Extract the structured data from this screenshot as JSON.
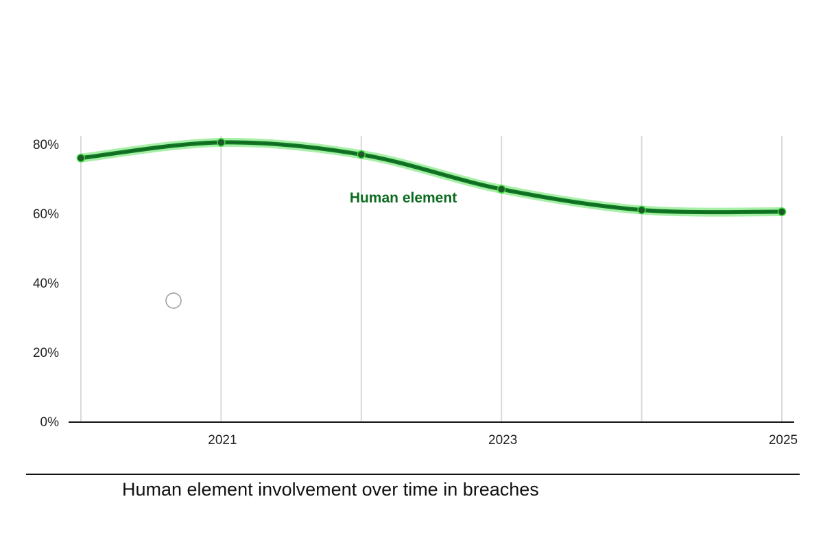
{
  "chart_data": {
    "type": "line",
    "x": [
      2020,
      2021,
      2022,
      2023,
      2024,
      2025
    ],
    "x_tick_labels": [
      "2021",
      "2023",
      "2025"
    ],
    "y_tick_labels": [
      "80%",
      "60%",
      "40%",
      "20%",
      "0%"
    ],
    "ylim": [
      0,
      80
    ],
    "grid": "vertical",
    "series": [
      {
        "name": "Human element",
        "values": [
          76,
          80.5,
          77,
          67,
          61,
          60.5
        ],
        "color": "#0f7a24"
      }
    ],
    "annotation": "Human element"
  },
  "caption": "Human element involvement over time in breaches",
  "colors": {
    "line": "#0f7a24",
    "line_glow": "#3ddc3d",
    "label": "#0b6b1e",
    "grid": "#d9d9d9",
    "axis": "#111111"
  }
}
